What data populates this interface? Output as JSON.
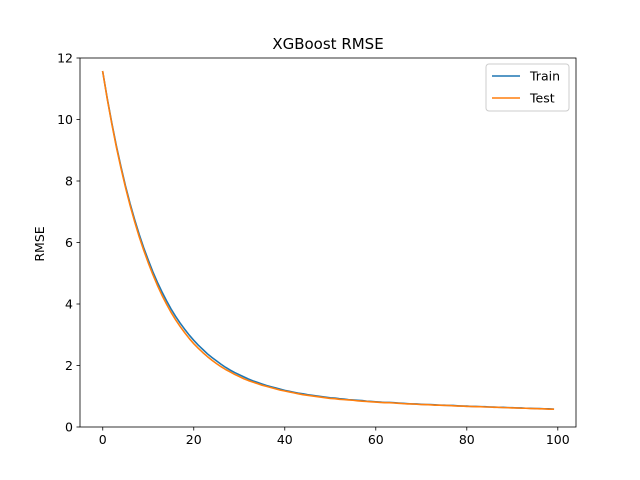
{
  "chart_data": {
    "type": "line",
    "title": "XGBoost RMSE",
    "xlabel": "",
    "ylabel": "RMSE",
    "xlim": [
      -5,
      104
    ],
    "ylim": [
      0,
      12
    ],
    "xticks": [
      0,
      20,
      40,
      60,
      80,
      100
    ],
    "yticks": [
      0,
      2,
      4,
      6,
      8,
      10,
      12
    ],
    "grid": false,
    "legend_position": "top-right",
    "colors": {
      "Train": "#1f77b4",
      "Test": "#ff7f0e"
    },
    "x": [
      0,
      1,
      2,
      3,
      4,
      5,
      6,
      7,
      8,
      9,
      10,
      11,
      12,
      13,
      14,
      15,
      16,
      17,
      18,
      19,
      20,
      21,
      22,
      23,
      24,
      25,
      26,
      27,
      28,
      29,
      30,
      31,
      32,
      33,
      34,
      35,
      36,
      37,
      38,
      39,
      40,
      41,
      42,
      43,
      44,
      45,
      46,
      47,
      48,
      49,
      50,
      51,
      52,
      53,
      54,
      55,
      56,
      57,
      58,
      59,
      60,
      61,
      62,
      63,
      64,
      65,
      66,
      67,
      68,
      69,
      70,
      71,
      72,
      73,
      74,
      75,
      76,
      77,
      78,
      79,
      80,
      81,
      82,
      83,
      84,
      85,
      86,
      87,
      88,
      89,
      90,
      91,
      92,
      93,
      94,
      95,
      96,
      97,
      98,
      99
    ],
    "series": [
      {
        "name": "Train",
        "values": [
          11.55,
          10.68,
          9.88,
          9.14,
          8.47,
          7.84,
          7.27,
          6.75,
          6.27,
          5.83,
          5.43,
          5.05,
          4.71,
          4.4,
          4.11,
          3.84,
          3.6,
          3.38,
          3.18,
          2.99,
          2.82,
          2.66,
          2.52,
          2.38,
          2.26,
          2.15,
          2.04,
          1.94,
          1.85,
          1.77,
          1.7,
          1.63,
          1.56,
          1.5,
          1.45,
          1.4,
          1.35,
          1.31,
          1.27,
          1.23,
          1.19,
          1.16,
          1.13,
          1.1,
          1.08,
          1.05,
          1.03,
          1.01,
          0.99,
          0.97,
          0.95,
          0.94,
          0.92,
          0.91,
          0.89,
          0.88,
          0.87,
          0.86,
          0.84,
          0.83,
          0.82,
          0.81,
          0.8,
          0.8,
          0.79,
          0.78,
          0.77,
          0.76,
          0.75,
          0.75,
          0.74,
          0.73,
          0.73,
          0.72,
          0.71,
          0.71,
          0.7,
          0.7,
          0.69,
          0.68,
          0.68,
          0.67,
          0.67,
          0.66,
          0.66,
          0.65,
          0.65,
          0.64,
          0.64,
          0.63,
          0.63,
          0.62,
          0.62,
          0.61,
          0.61,
          0.6,
          0.6,
          0.59,
          0.59,
          0.58
        ]
      },
      {
        "name": "Test",
        "values": [
          11.55,
          10.66,
          9.85,
          9.1,
          8.42,
          7.79,
          7.21,
          6.68,
          6.19,
          5.75,
          5.34,
          4.96,
          4.61,
          4.29,
          4.0,
          3.73,
          3.49,
          3.27,
          3.07,
          2.88,
          2.71,
          2.56,
          2.42,
          2.29,
          2.17,
          2.06,
          1.96,
          1.87,
          1.79,
          1.71,
          1.64,
          1.57,
          1.51,
          1.46,
          1.41,
          1.36,
          1.32,
          1.28,
          1.24,
          1.2,
          1.17,
          1.14,
          1.11,
          1.08,
          1.05,
          1.03,
          1.01,
          0.99,
          0.97,
          0.95,
          0.93,
          0.92,
          0.9,
          0.89,
          0.88,
          0.87,
          0.85,
          0.84,
          0.83,
          0.82,
          0.81,
          0.8,
          0.79,
          0.79,
          0.78,
          0.77,
          0.76,
          0.75,
          0.75,
          0.74,
          0.73,
          0.73,
          0.72,
          0.71,
          0.71,
          0.7,
          0.7,
          0.69,
          0.68,
          0.68,
          0.67,
          0.67,
          0.66,
          0.66,
          0.65,
          0.65,
          0.64,
          0.64,
          0.63,
          0.63,
          0.62,
          0.62,
          0.61,
          0.61,
          0.6,
          0.6,
          0.59,
          0.59,
          0.58,
          0.58
        ]
      }
    ]
  }
}
